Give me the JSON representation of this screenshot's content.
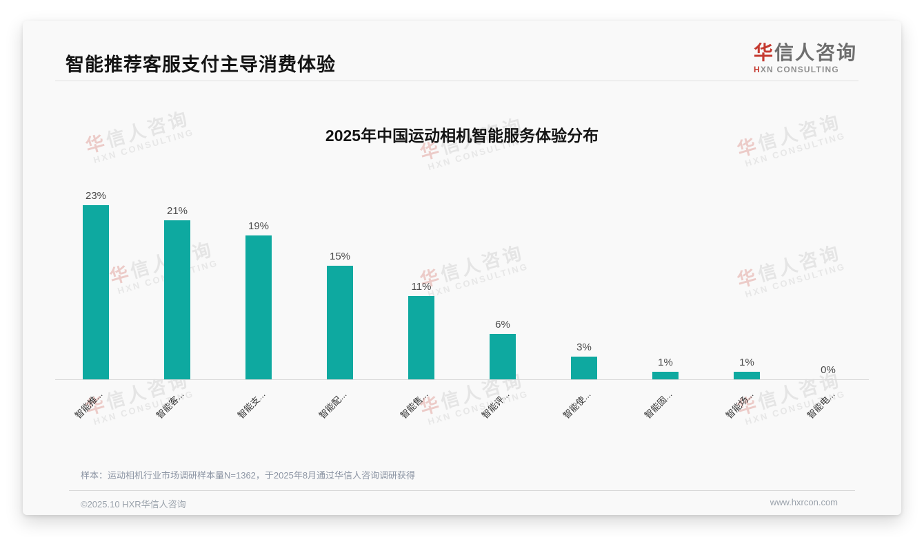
{
  "page": {
    "title": "智能推荐客服支付主导消费体验",
    "logo": {
      "cn_first": "华",
      "cn_rest": "信人咨询",
      "en_first": "H",
      "en_rest": "XN CONSULTING"
    },
    "note": "样本：运动相机行业市场调研样本量N=1362，于2025年8月通过华信人咨询调研获得",
    "footer_left": "©2025.10 HXR华信人咨询",
    "footer_right": "www.hxrcon.com"
  },
  "watermark": {
    "cn_first": "华",
    "cn_rest": "信人咨询",
    "en": "HXN CONSULTING"
  },
  "chart_data": {
    "type": "bar",
    "title": "2025年中国运动相机智能服务体验分布",
    "categories": [
      "智能推...",
      "智能客...",
      "智能支...",
      "智能配...",
      "智能售...",
      "智能评...",
      "智能使...",
      "智能固...",
      "智能场...",
      "智能电..."
    ],
    "values": [
      23,
      21,
      19,
      15,
      11,
      6,
      3,
      1,
      1,
      0
    ],
    "value_labels": [
      "23%",
      "21%",
      "19%",
      "15%",
      "11%",
      "6%",
      "3%",
      "1%",
      "1%",
      "0%"
    ],
    "unit": "%",
    "bar_color": "#0EA9A0",
    "ylim": [
      0,
      25
    ],
    "grid": false,
    "legend": null,
    "xlabel": "",
    "ylabel": ""
  }
}
